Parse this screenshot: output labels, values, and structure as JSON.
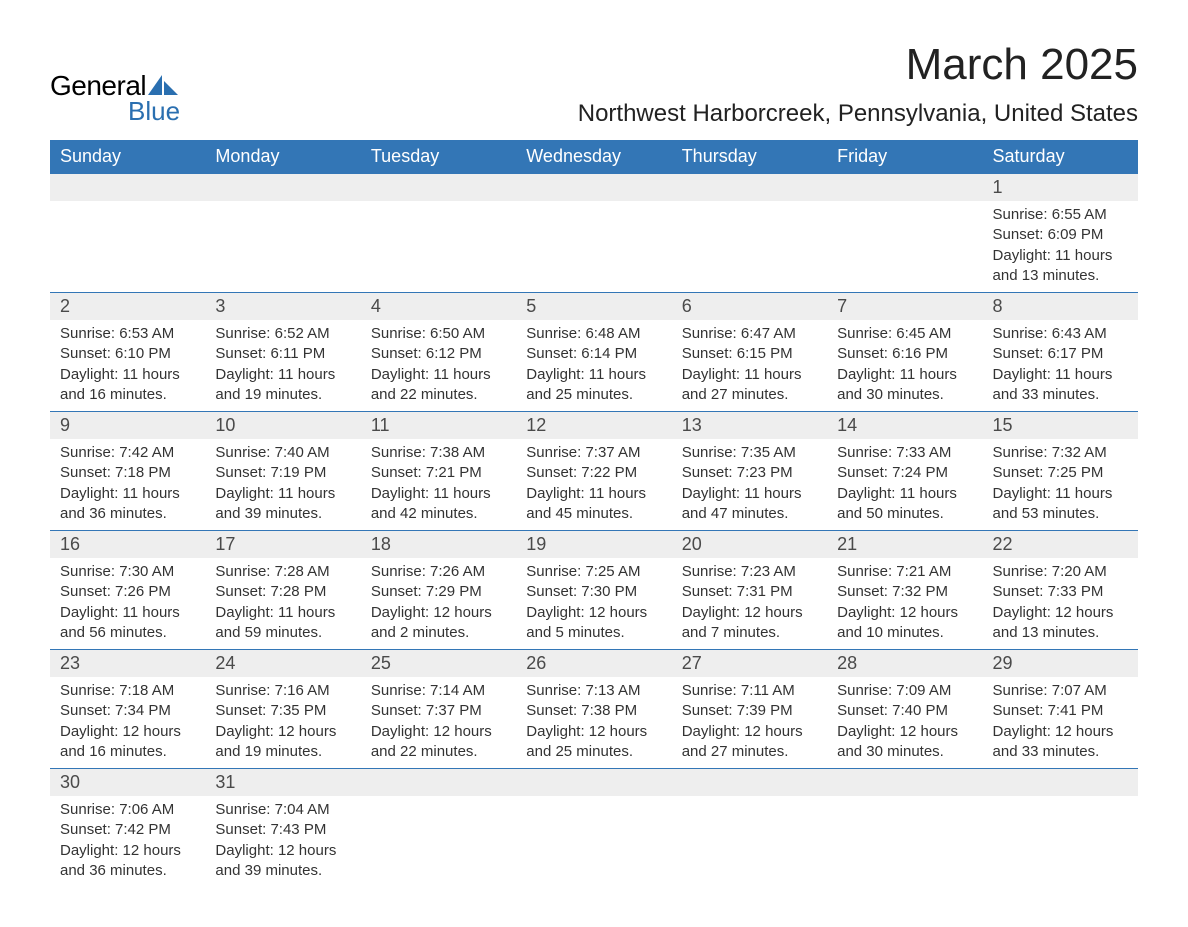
{
  "logo": {
    "text1": "General",
    "text2": "Blue",
    "accent_color": "#2a6fb0"
  },
  "title": "March 2025",
  "location": "Northwest Harborcreek, Pennsylvania, United States",
  "colors": {
    "header_bg": "#3376b6",
    "header_text": "#ffffff",
    "daynum_bg": "#eeeeee",
    "row_divider": "#3376b6",
    "body_text": "#333333"
  },
  "weekdays": [
    "Sunday",
    "Monday",
    "Tuesday",
    "Wednesday",
    "Thursday",
    "Friday",
    "Saturday"
  ],
  "weeks": [
    [
      null,
      null,
      null,
      null,
      null,
      null,
      {
        "n": "1",
        "sr": "6:55 AM",
        "ss": "6:09 PM",
        "dl": "11 hours and 13 minutes."
      }
    ],
    [
      {
        "n": "2",
        "sr": "6:53 AM",
        "ss": "6:10 PM",
        "dl": "11 hours and 16 minutes."
      },
      {
        "n": "3",
        "sr": "6:52 AM",
        "ss": "6:11 PM",
        "dl": "11 hours and 19 minutes."
      },
      {
        "n": "4",
        "sr": "6:50 AM",
        "ss": "6:12 PM",
        "dl": "11 hours and 22 minutes."
      },
      {
        "n": "5",
        "sr": "6:48 AM",
        "ss": "6:14 PM",
        "dl": "11 hours and 25 minutes."
      },
      {
        "n": "6",
        "sr": "6:47 AM",
        "ss": "6:15 PM",
        "dl": "11 hours and 27 minutes."
      },
      {
        "n": "7",
        "sr": "6:45 AM",
        "ss": "6:16 PM",
        "dl": "11 hours and 30 minutes."
      },
      {
        "n": "8",
        "sr": "6:43 AM",
        "ss": "6:17 PM",
        "dl": "11 hours and 33 minutes."
      }
    ],
    [
      {
        "n": "9",
        "sr": "7:42 AM",
        "ss": "7:18 PM",
        "dl": "11 hours and 36 minutes."
      },
      {
        "n": "10",
        "sr": "7:40 AM",
        "ss": "7:19 PM",
        "dl": "11 hours and 39 minutes."
      },
      {
        "n": "11",
        "sr": "7:38 AM",
        "ss": "7:21 PM",
        "dl": "11 hours and 42 minutes."
      },
      {
        "n": "12",
        "sr": "7:37 AM",
        "ss": "7:22 PM",
        "dl": "11 hours and 45 minutes."
      },
      {
        "n": "13",
        "sr": "7:35 AM",
        "ss": "7:23 PM",
        "dl": "11 hours and 47 minutes."
      },
      {
        "n": "14",
        "sr": "7:33 AM",
        "ss": "7:24 PM",
        "dl": "11 hours and 50 minutes."
      },
      {
        "n": "15",
        "sr": "7:32 AM",
        "ss": "7:25 PM",
        "dl": "11 hours and 53 minutes."
      }
    ],
    [
      {
        "n": "16",
        "sr": "7:30 AM",
        "ss": "7:26 PM",
        "dl": "11 hours and 56 minutes."
      },
      {
        "n": "17",
        "sr": "7:28 AM",
        "ss": "7:28 PM",
        "dl": "11 hours and 59 minutes."
      },
      {
        "n": "18",
        "sr": "7:26 AM",
        "ss": "7:29 PM",
        "dl": "12 hours and 2 minutes."
      },
      {
        "n": "19",
        "sr": "7:25 AM",
        "ss": "7:30 PM",
        "dl": "12 hours and 5 minutes."
      },
      {
        "n": "20",
        "sr": "7:23 AM",
        "ss": "7:31 PM",
        "dl": "12 hours and 7 minutes."
      },
      {
        "n": "21",
        "sr": "7:21 AM",
        "ss": "7:32 PM",
        "dl": "12 hours and 10 minutes."
      },
      {
        "n": "22",
        "sr": "7:20 AM",
        "ss": "7:33 PM",
        "dl": "12 hours and 13 minutes."
      }
    ],
    [
      {
        "n": "23",
        "sr": "7:18 AM",
        "ss": "7:34 PM",
        "dl": "12 hours and 16 minutes."
      },
      {
        "n": "24",
        "sr": "7:16 AM",
        "ss": "7:35 PM",
        "dl": "12 hours and 19 minutes."
      },
      {
        "n": "25",
        "sr": "7:14 AM",
        "ss": "7:37 PM",
        "dl": "12 hours and 22 minutes."
      },
      {
        "n": "26",
        "sr": "7:13 AM",
        "ss": "7:38 PM",
        "dl": "12 hours and 25 minutes."
      },
      {
        "n": "27",
        "sr": "7:11 AM",
        "ss": "7:39 PM",
        "dl": "12 hours and 27 minutes."
      },
      {
        "n": "28",
        "sr": "7:09 AM",
        "ss": "7:40 PM",
        "dl": "12 hours and 30 minutes."
      },
      {
        "n": "29",
        "sr": "7:07 AM",
        "ss": "7:41 PM",
        "dl": "12 hours and 33 minutes."
      }
    ],
    [
      {
        "n": "30",
        "sr": "7:06 AM",
        "ss": "7:42 PM",
        "dl": "12 hours and 36 minutes."
      },
      {
        "n": "31",
        "sr": "7:04 AM",
        "ss": "7:43 PM",
        "dl": "12 hours and 39 minutes."
      },
      null,
      null,
      null,
      null,
      null
    ]
  ],
  "labels": {
    "sunrise": "Sunrise:",
    "sunset": "Sunset:",
    "daylight": "Daylight:"
  }
}
